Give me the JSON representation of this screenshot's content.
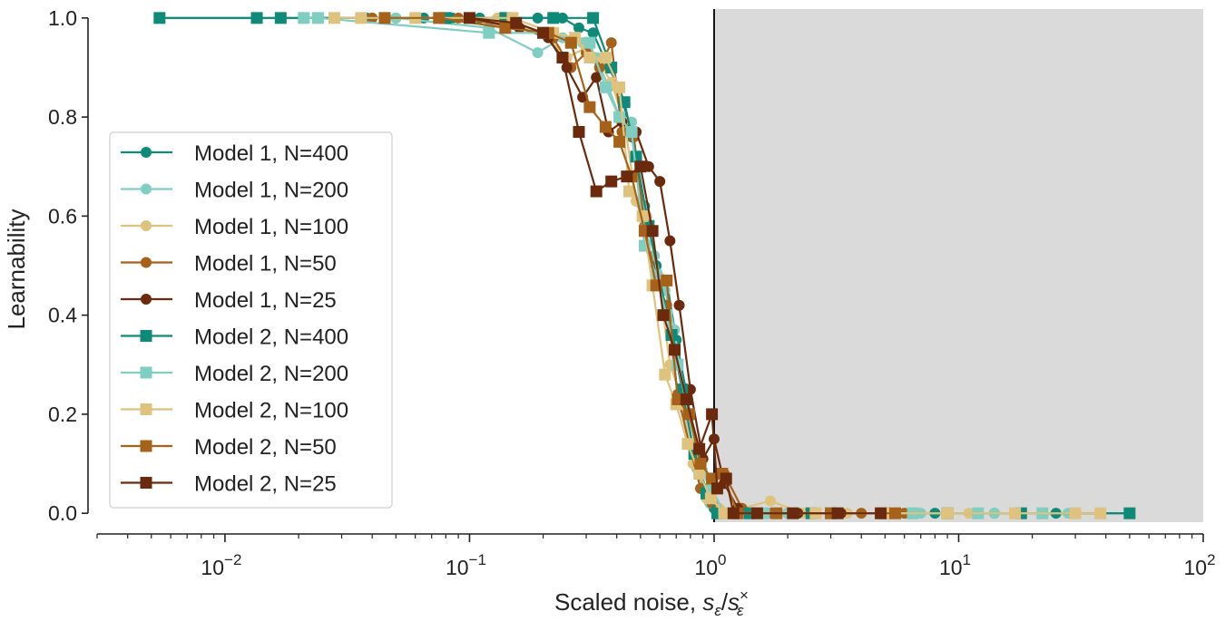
{
  "chart_data": {
    "type": "line",
    "xscale": "log",
    "xlim": [
      0.003,
      100
    ],
    "ylim": [
      -0.018,
      1.018
    ],
    "xlabel": "Scaled noise, ",
    "xlabel_math": {
      "s1": "s",
      "sub1": "ε",
      "slash": "/",
      "s2": "s",
      "sup2": "×",
      "sub2": "ε"
    },
    "ylabel": "Learnability",
    "yticks": [
      "0.0",
      "0.2",
      "0.4",
      "0.6",
      "0.8",
      "1.0"
    ],
    "ytick_values": [
      0,
      0.2,
      0.4,
      0.6,
      0.8,
      1.0
    ],
    "xticks": [
      {
        "base": "10",
        "exp": "−2",
        "value": 0.01
      },
      {
        "base": "10",
        "exp": "−1",
        "value": 0.1
      },
      {
        "base": "10",
        "exp": "0",
        "value": 1
      },
      {
        "base": "10",
        "exp": "1",
        "value": 10
      },
      {
        "base": "10",
        "exp": "2",
        "value": 100
      }
    ],
    "shaded_region": {
      "x_from": 1,
      "x_to": 100,
      "color": "#dadada"
    },
    "vertical_line": {
      "x": 1,
      "color": "#111111"
    },
    "legend_position": "center-left",
    "series": [
      {
        "name": "Model 1, N=400",
        "marker": "circle",
        "color": "#0f8a78",
        "points": [
          [
            0.0054,
            1.0
          ],
          [
            0.0135,
            1.0
          ],
          [
            0.0169,
            1.0
          ],
          [
            0.021,
            1.0
          ],
          [
            0.028,
            1.0
          ],
          [
            0.038,
            1.0
          ],
          [
            0.05,
            1.0
          ],
          [
            0.065,
            1.0
          ],
          [
            0.085,
            1.0
          ],
          [
            0.11,
            1.0
          ],
          [
            0.14,
            1.0
          ],
          [
            0.19,
            1.0
          ],
          [
            0.24,
            1.0
          ],
          [
            0.28,
            0.98
          ],
          [
            0.32,
            0.97
          ],
          [
            0.37,
            0.9
          ],
          [
            0.41,
            0.86
          ],
          [
            0.46,
            0.76
          ],
          [
            0.52,
            0.62
          ],
          [
            0.58,
            0.5
          ],
          [
            0.64,
            0.47
          ],
          [
            0.7,
            0.35
          ],
          [
            0.78,
            0.23
          ],
          [
            0.88,
            0.08
          ],
          [
            1.0,
            0.01
          ],
          [
            1.2,
            0.0
          ],
          [
            1.5,
            0.0
          ],
          [
            2.0,
            0.0
          ],
          [
            3.0,
            0.0
          ],
          [
            5.0,
            0.0
          ],
          [
            8.0,
            0.0
          ],
          [
            14.0,
            0.0
          ],
          [
            25.0,
            0.0
          ],
          [
            50.0,
            0.0
          ]
        ]
      },
      {
        "name": "Model 1, N=200",
        "marker": "circle",
        "color": "#80cdc1",
        "points": [
          [
            0.021,
            1.0
          ],
          [
            0.05,
            1.0
          ],
          [
            0.12,
            0.98
          ],
          [
            0.19,
            0.93
          ],
          [
            0.24,
            0.96
          ],
          [
            0.29,
            0.95
          ],
          [
            0.33,
            0.92
          ],
          [
            0.37,
            0.86
          ],
          [
            0.41,
            0.8
          ],
          [
            0.46,
            0.79
          ],
          [
            0.51,
            0.62
          ],
          [
            0.57,
            0.52
          ],
          [
            0.63,
            0.45
          ],
          [
            0.69,
            0.37
          ],
          [
            0.76,
            0.21
          ],
          [
            0.85,
            0.09
          ],
          [
            0.96,
            0.02
          ],
          [
            1.1,
            0.0
          ],
          [
            1.4,
            0.0
          ],
          [
            2.0,
            0.0
          ],
          [
            3.5,
            0.0
          ],
          [
            7.0,
            0.0
          ],
          [
            14.0,
            0.0
          ],
          [
            28.0,
            0.0
          ]
        ]
      },
      {
        "name": "Model 1, N=100",
        "marker": "circle",
        "color": "#dfc27d",
        "points": [
          [
            0.028,
            1.0
          ],
          [
            0.06,
            1.0
          ],
          [
            0.13,
            1.0
          ],
          [
            0.2,
            0.97
          ],
          [
            0.25,
            0.92
          ],
          [
            0.3,
            0.94
          ],
          [
            0.34,
            0.91
          ],
          [
            0.38,
            0.87
          ],
          [
            0.43,
            0.79
          ],
          [
            0.48,
            0.63
          ],
          [
            0.53,
            0.6
          ],
          [
            0.59,
            0.48
          ],
          [
            0.66,
            0.3
          ],
          [
            0.73,
            0.24
          ],
          [
            0.82,
            0.1
          ],
          [
            0.93,
            0.03
          ],
          [
            1.05,
            0.01
          ],
          [
            1.3,
            0.01
          ],
          [
            1.7,
            0.025
          ],
          [
            2.3,
            0.0
          ],
          [
            3.5,
            0.0
          ],
          [
            6.0,
            0.0
          ],
          [
            11.0,
            0.0
          ],
          [
            22.0,
            0.0
          ],
          [
            38.0,
            0.0
          ]
        ]
      },
      {
        "name": "Model 1, N=50",
        "marker": "circle",
        "color": "#a6611a",
        "points": [
          [
            0.04,
            1.0
          ],
          [
            0.09,
            1.0
          ],
          [
            0.16,
            0.98
          ],
          [
            0.22,
            0.96
          ],
          [
            0.26,
            0.9
          ],
          [
            0.3,
            0.93
          ],
          [
            0.34,
            0.9
          ],
          [
            0.38,
            0.95
          ],
          [
            0.42,
            0.77
          ],
          [
            0.47,
            0.76
          ],
          [
            0.52,
            0.58
          ],
          [
            0.58,
            0.47
          ],
          [
            0.64,
            0.42
          ],
          [
            0.71,
            0.24
          ],
          [
            0.79,
            0.14
          ],
          [
            0.88,
            0.05
          ],
          [
            0.98,
            0.02
          ],
          [
            1.1,
            0.08
          ],
          [
            1.3,
            0.01
          ],
          [
            1.7,
            0.0
          ],
          [
            2.5,
            0.0
          ],
          [
            4.0,
            0.0
          ],
          [
            6.0,
            0.0
          ]
        ]
      },
      {
        "name": "Model 1, N=25",
        "marker": "circle",
        "color": "#6b2a0d",
        "points": [
          [
            0.1,
            1.0
          ],
          [
            0.16,
            0.98
          ],
          [
            0.21,
            0.96
          ],
          [
            0.25,
            0.9
          ],
          [
            0.29,
            0.84
          ],
          [
            0.33,
            0.88
          ],
          [
            0.37,
            0.77
          ],
          [
            0.42,
            0.79
          ],
          [
            0.48,
            0.77
          ],
          [
            0.54,
            0.7
          ],
          [
            0.6,
            0.67
          ],
          [
            0.66,
            0.55
          ],
          [
            0.72,
            0.42
          ],
          [
            0.8,
            0.25
          ],
          [
            0.9,
            0.11
          ],
          [
            1.0,
            0.15
          ],
          [
            1.1,
            0.06
          ],
          [
            1.25,
            0.01
          ],
          [
            1.6,
            0.0
          ],
          [
            2.2,
            0.0
          ],
          [
            3.3,
            0.0
          ],
          [
            5.0,
            0.0
          ]
        ]
      },
      {
        "name": "Model 2, N=400",
        "marker": "square",
        "color": "#0f8a78",
        "points": [
          [
            0.0054,
            1.0
          ],
          [
            0.0135,
            1.0
          ],
          [
            0.0169,
            1.0
          ],
          [
            0.08,
            1.0
          ],
          [
            0.14,
            1.0
          ],
          [
            0.22,
            1.0
          ],
          [
            0.32,
            1.0
          ],
          [
            0.38,
            0.9
          ],
          [
            0.43,
            0.83
          ],
          [
            0.48,
            0.72
          ],
          [
            0.54,
            0.58
          ],
          [
            0.6,
            0.47
          ],
          [
            0.67,
            0.36
          ],
          [
            0.74,
            0.25
          ],
          [
            0.83,
            0.12
          ],
          [
            0.93,
            0.04
          ],
          [
            1.03,
            0.0
          ],
          [
            1.4,
            0.0
          ],
          [
            2.5,
            0.0
          ],
          [
            5.0,
            0.0
          ],
          [
            9.0,
            0.0
          ],
          [
            18.0,
            0.0
          ],
          [
            50.0,
            0.0
          ]
        ]
      },
      {
        "name": "Model 2, N=200",
        "marker": "square",
        "color": "#80cdc1",
        "points": [
          [
            0.021,
            1.0
          ],
          [
            0.024,
            1.0
          ],
          [
            0.12,
            0.97
          ],
          [
            0.2,
            0.97
          ],
          [
            0.26,
            0.95
          ],
          [
            0.31,
            0.95
          ],
          [
            0.36,
            0.86
          ],
          [
            0.41,
            0.8
          ],
          [
            0.46,
            0.77
          ],
          [
            0.52,
            0.54
          ],
          [
            0.58,
            0.48
          ],
          [
            0.64,
            0.4
          ],
          [
            0.71,
            0.3
          ],
          [
            0.79,
            0.2
          ],
          [
            0.89,
            0.08
          ],
          [
            0.98,
            0.05
          ],
          [
            1.1,
            0.0
          ],
          [
            1.6,
            0.0
          ],
          [
            3.0,
            0.0
          ],
          [
            6.5,
            0.0
          ],
          [
            12.0,
            0.0
          ],
          [
            22.0,
            0.0
          ]
        ]
      },
      {
        "name": "Model 2, N=100",
        "marker": "square",
        "color": "#dfc27d",
        "points": [
          [
            0.028,
            1.0
          ],
          [
            0.036,
            1.0
          ],
          [
            0.06,
            1.0
          ],
          [
            0.15,
            1.0
          ],
          [
            0.22,
            0.97
          ],
          [
            0.27,
            0.96
          ],
          [
            0.31,
            0.92
          ],
          [
            0.36,
            0.92
          ],
          [
            0.41,
            0.86
          ],
          [
            0.45,
            0.65
          ],
          [
            0.51,
            0.6
          ],
          [
            0.56,
            0.46
          ],
          [
            0.63,
            0.28
          ],
          [
            0.7,
            0.22
          ],
          [
            0.78,
            0.14
          ],
          [
            0.87,
            0.08
          ],
          [
            0.97,
            0.03
          ],
          [
            1.1,
            0.0
          ],
          [
            1.5,
            0.0
          ],
          [
            2.6,
            0.0
          ],
          [
            5.0,
            0.0
          ],
          [
            9.0,
            0.0
          ],
          [
            17.0,
            0.0
          ],
          [
            30.0,
            0.0
          ],
          [
            38.0,
            0.0
          ]
        ]
      },
      {
        "name": "Model 2, N=50",
        "marker": "square",
        "color": "#a6611a",
        "points": [
          [
            0.045,
            1.0
          ],
          [
            0.075,
            1.0
          ],
          [
            0.14,
            0.98
          ],
          [
            0.21,
            0.97
          ],
          [
            0.26,
            0.95
          ],
          [
            0.31,
            0.82
          ],
          [
            0.36,
            0.78
          ],
          [
            0.41,
            0.75
          ],
          [
            0.46,
            0.68
          ],
          [
            0.52,
            0.57
          ],
          [
            0.58,
            0.46
          ],
          [
            0.64,
            0.47
          ],
          [
            0.71,
            0.23
          ],
          [
            0.79,
            0.2
          ],
          [
            0.88,
            0.1
          ],
          [
            0.98,
            0.07
          ],
          [
            1.08,
            0.08
          ],
          [
            1.25,
            0.0
          ],
          [
            1.8,
            0.0
          ],
          [
            3.0,
            0.0
          ],
          [
            5.5,
            0.0
          ]
        ]
      },
      {
        "name": "Model 2, N=25",
        "marker": "square",
        "color": "#6b2a0d",
        "points": [
          [
            0.1,
            1.0
          ],
          [
            0.155,
            0.99
          ],
          [
            0.2,
            0.97
          ],
          [
            0.24,
            0.92
          ],
          [
            0.28,
            0.77
          ],
          [
            0.33,
            0.65
          ],
          [
            0.38,
            0.67
          ],
          [
            0.44,
            0.68
          ],
          [
            0.5,
            0.7
          ],
          [
            0.56,
            0.57
          ],
          [
            0.62,
            0.4
          ],
          [
            0.69,
            0.33
          ],
          [
            0.77,
            0.23
          ],
          [
            0.87,
            0.13
          ],
          [
            0.98,
            0.2
          ],
          [
            1.03,
            0.05
          ],
          [
            1.12,
            0.07
          ],
          [
            1.2,
            0.0
          ],
          [
            1.5,
            0.0
          ],
          [
            2.1,
            0.0
          ],
          [
            3.2,
            0.0
          ],
          [
            4.8,
            0.0
          ]
        ]
      }
    ]
  }
}
